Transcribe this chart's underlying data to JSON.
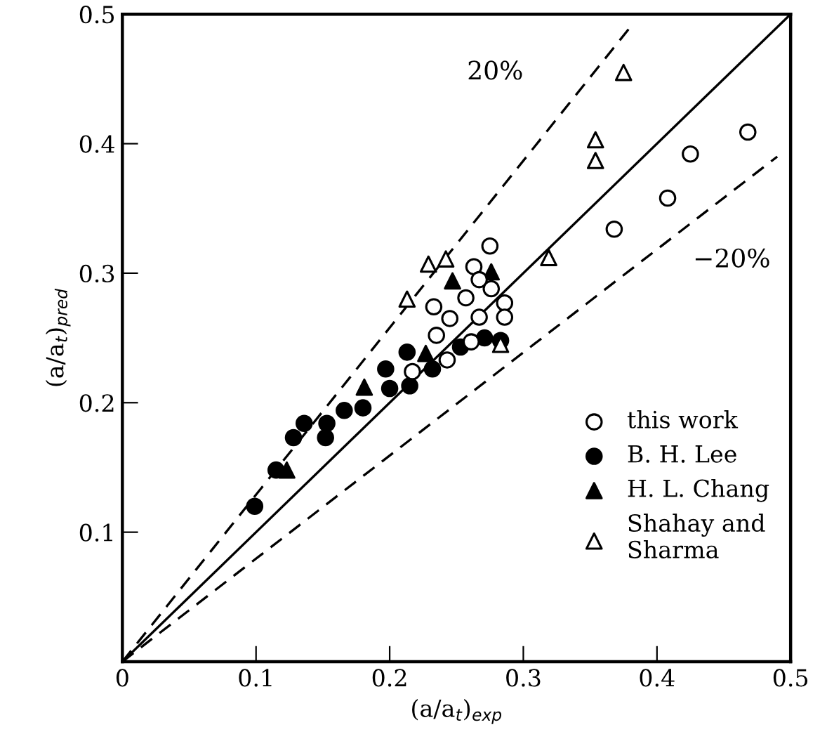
{
  "chart_data": {
    "type": "scatter",
    "xlabel": "(a/a$_{t}$)$_{exp}$",
    "ylabel": "(a/a$_{t}$)$_{pred}$",
    "xlim": [
      0,
      0.5
    ],
    "ylim": [
      0,
      0.5
    ],
    "xticks": [
      0,
      0.1,
      0.2,
      0.3,
      0.4,
      0.5
    ],
    "yticks": [
      0.1,
      0.2,
      0.3,
      0.4,
      0.5
    ],
    "grid": false,
    "legend": "bottom right",
    "annotations": [
      "20%",
      "−20%"
    ],
    "series": [
      {
        "name": "this work",
        "color": "#000000",
        "marker": "circle",
        "x": [
          0.468,
          0.425,
          0.408,
          0.368,
          0.275,
          0.263,
          0.267,
          0.276,
          0.257,
          0.286,
          0.233,
          0.245,
          0.267,
          0.286,
          0.235,
          0.261,
          0.243,
          0.217
        ],
        "values": [
          0.409,
          0.392,
          0.358,
          0.334,
          0.321,
          0.305,
          0.295,
          0.288,
          0.281,
          0.277,
          0.274,
          0.265,
          0.266,
          0.266,
          0.252,
          0.247,
          0.233,
          0.224
        ]
      },
      {
        "name": "B. H. Lee",
        "color": "#000000",
        "marker": "circle",
        "x": [
          0.099,
          0.115,
          0.128,
          0.136,
          0.153,
          0.152,
          0.166,
          0.18,
          0.197,
          0.2,
          0.213,
          0.215,
          0.232,
          0.253,
          0.271,
          0.283
        ],
        "values": [
          0.12,
          0.148,
          0.173,
          0.184,
          0.184,
          0.173,
          0.194,
          0.196,
          0.226,
          0.211,
          0.239,
          0.213,
          0.226,
          0.243,
          0.25,
          0.248
        ]
      },
      {
        "name": "H. L. Chang",
        "color": "#000000",
        "marker": "triangle",
        "x": [
          0.123,
          0.181,
          0.227,
          0.247,
          0.276
        ],
        "values": [
          0.148,
          0.212,
          0.238,
          0.294,
          0.301
        ]
      },
      {
        "name": "Shahay and\nSharma",
        "color": "#000000",
        "marker": "triangle",
        "x": [
          0.375,
          0.354,
          0.354,
          0.319,
          0.229,
          0.242,
          0.213,
          0.283
        ],
        "values": [
          0.455,
          0.403,
          0.387,
          0.312,
          0.307,
          0.311,
          0.28,
          0.245
        ]
      },
      {
        "type": "line",
        "color": "#000000",
        "line_style": "solid",
        "x": [
          0,
          0.5
        ],
        "values": [
          0,
          0.5
        ]
      },
      {
        "type": "line",
        "color": "#000000",
        "line_style": "dashed",
        "x": [
          0,
          0.38
        ],
        "values": [
          0,
          0.49
        ]
      },
      {
        "type": "line",
        "color": "#000000",
        "line_style": "dashed",
        "x": [
          0,
          0.49
        ],
        "values": [
          0,
          0.39
        ]
      }
    ]
  }
}
